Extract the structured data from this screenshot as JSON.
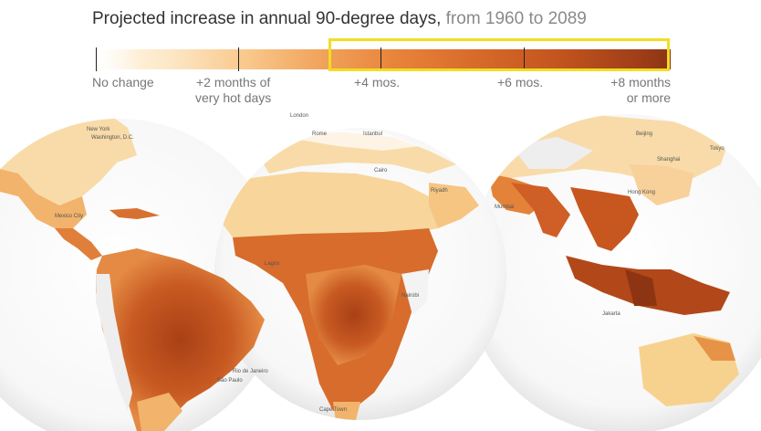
{
  "title": {
    "main": "Projected increase in annual 90-degree days,",
    "range": "from 1960 to 2089"
  },
  "legend": {
    "labels": [
      {
        "text": "No change"
      },
      {
        "text": "+2 months of",
        "text2": "very hot days"
      },
      {
        "text": "+4 mos."
      },
      {
        "text": "+6 mos."
      },
      {
        "text": "+8 months",
        "text2": "or more"
      }
    ],
    "highlighted_range": "+4 mos. to +8 months or more"
  },
  "map": {
    "globes": [
      "Americas",
      "Europe and Africa",
      "Asia and Oceania"
    ],
    "cities": [
      "New York",
      "Washington, D.C.",
      "Mexico City",
      "Rio de Janeiro",
      "São Paulo",
      "London",
      "Rome",
      "Istanbul",
      "Cairo",
      "Riyadh",
      "Lagos",
      "Nairobi",
      "Cape Town",
      "Beijing",
      "Tokyo",
      "Shanghai",
      "Hong Kong",
      "Mumbai",
      "Jakarta"
    ],
    "colors": {
      "no_change": "#fff7ea",
      "two_months": "#f9c98c",
      "four_months": "#e8843a",
      "six_months": "#c4551f",
      "eight_plus": "#8c3414",
      "highlight": "#f2dd22"
    }
  }
}
